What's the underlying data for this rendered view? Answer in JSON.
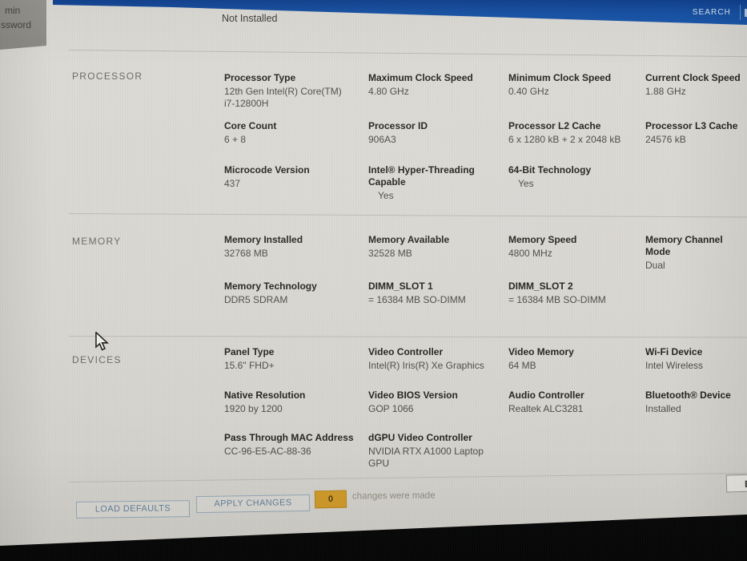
{
  "header": {
    "sidebar_fragments": {
      "line1": "min",
      "line2": "ssword"
    },
    "status_value": "Not Installed",
    "search_label": "SEARCH"
  },
  "sections": [
    {
      "title": "PROCESSOR",
      "rows": [
        [
          {
            "label": "Processor Type",
            "value": "12th Gen Intel(R) Core(TM)\ni7-12800H"
          },
          {
            "label": "Maximum Clock Speed",
            "value": "4.80 GHz"
          },
          {
            "label": "Minimum Clock Speed",
            "value": "0.40 GHz"
          },
          {
            "label": "Current Clock Speed",
            "value": "1.88 GHz"
          }
        ],
        [
          {
            "label": "Core Count",
            "value": "6 + 8"
          },
          {
            "label": "Processor ID",
            "value": "906A3"
          },
          {
            "label": "Processor L2 Cache",
            "value": "6 x 1280  kB + 2 x 2048  kB"
          },
          {
            "label": "Processor L3 Cache",
            "value": "24576 kB"
          }
        ],
        [
          {
            "label": "Microcode Version",
            "value": "437"
          },
          {
            "label": "Intel® Hyper-Threading Capable",
            "value": "Yes",
            "pad": true
          },
          {
            "label": "64-Bit Technology",
            "value": "Yes",
            "pad": true
          },
          null
        ]
      ]
    },
    {
      "title": "MEMORY",
      "rows": [
        [
          {
            "label": "Memory Installed",
            "value": "32768 MB"
          },
          {
            "label": "Memory Available",
            "value": "32528 MB"
          },
          {
            "label": "Memory Speed",
            "value": "4800 MHz"
          },
          {
            "label": "Memory Channel Mode",
            "value": "Dual"
          }
        ],
        [
          {
            "label": "Memory Technology",
            "value": "DDR5 SDRAM"
          },
          {
            "label": "DIMM_SLOT 1",
            "value": "= 16384 MB SO-DIMM"
          },
          {
            "label": "DIMM_SLOT 2",
            "value": "= 16384 MB SO-DIMM"
          },
          null
        ]
      ]
    },
    {
      "title": "DEVICES",
      "rows": [
        [
          {
            "label": "Panel Type",
            "value": "15.6\" FHD+"
          },
          {
            "label": "Video Controller",
            "value": "Intel(R) Iris(R) Xe Graphics"
          },
          {
            "label": "Video Memory",
            "value": "64 MB"
          },
          {
            "label": "Wi-Fi Device",
            "value": "Intel Wireless"
          }
        ],
        [
          {
            "label": "Native Resolution",
            "value": "1920 by 1200"
          },
          {
            "label": "Video BIOS Version",
            "value": "GOP 1066"
          },
          {
            "label": "Audio Controller",
            "value": "Realtek ALC3281"
          },
          {
            "label": "Bluetooth® Device",
            "value": "Installed"
          }
        ],
        [
          {
            "label": "Pass Through MAC Address",
            "value": "CC-96-E5-AC-88-36"
          },
          {
            "label": "dGPU Video Controller",
            "value": "NVIDIA RTX A1000 Laptop GPU"
          },
          null,
          null
        ]
      ]
    }
  ],
  "footer": {
    "load_defaults_label": "LOAD DEFAULTS",
    "apply_changes_label": "APPLY CHANGES",
    "changes_count": "0",
    "changes_note": "changes were made",
    "partial_button_label": "E"
  },
  "colors": {
    "header_blue": "#1450a4",
    "screen_bg": "#d8d6d1",
    "badge_amber": "#d09a2a",
    "bezel_black": "#0a0b0d"
  }
}
